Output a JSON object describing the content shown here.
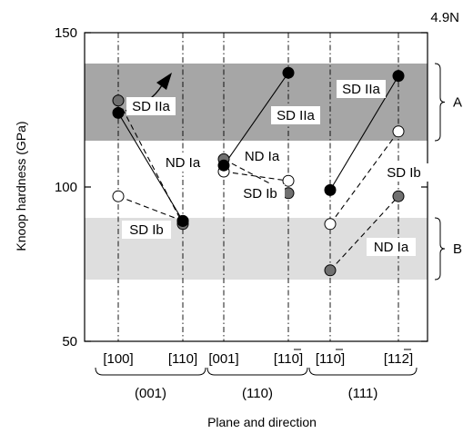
{
  "chart_data": {
    "type": "scatter",
    "corner_label": "4.9N",
    "ylabel": "Knoop hardness (GPa)",
    "xlabel": "Plane and direction",
    "ylim": [
      50,
      150
    ],
    "yticks": [
      "50",
      "100",
      "150"
    ],
    "ytick_values": [
      50,
      100,
      150
    ],
    "directions": [
      {
        "label": "[100]",
        "overbar": ""
      },
      {
        "label": "[110]",
        "overbar": ""
      },
      {
        "label": "[001]",
        "overbar": ""
      },
      {
        "label": "[110]",
        "overbar": "1"
      },
      {
        "label": "[110]",
        "overbar": "1"
      },
      {
        "label": "[112]",
        "overbar": "2"
      }
    ],
    "planes": [
      "(001)",
      "(110)",
      "(111)"
    ],
    "bands": [
      {
        "label": "A",
        "range": [
          115,
          140
        ],
        "color": "#a6a6a6"
      },
      {
        "label": "B",
        "range": [
          70,
          90
        ],
        "color": "#dedede"
      }
    ],
    "series": [
      {
        "name": "SD IIa",
        "marker": "black",
        "line": "solid",
        "groups": [
          [
            [
              0,
              124
            ],
            [
              1,
              89
            ]
          ],
          [
            [
              2,
              107
            ],
            [
              3,
              137
            ]
          ],
          [
            [
              4,
              99
            ],
            [
              5,
              136
            ]
          ]
        ]
      },
      {
        "name": "SD Ib",
        "marker": "white",
        "line": "dashed",
        "groups": [
          [
            [
              0,
              97
            ],
            [
              1,
              89
            ]
          ],
          [
            [
              2,
              105
            ],
            [
              3,
              102
            ]
          ],
          [
            [
              4,
              88
            ],
            [
              5,
              118
            ]
          ]
        ]
      },
      {
        "name": "ND Ia",
        "marker": "gray",
        "line": "dashed",
        "groups": [
          [
            [
              0,
              128
            ],
            [
              1,
              88
            ]
          ],
          [
            [
              2,
              109
            ],
            [
              3,
              98
            ]
          ],
          [
            [
              4,
              73
            ],
            [
              5,
              97
            ]
          ]
        ]
      }
    ],
    "annotations": [
      {
        "text": "SD IIa",
        "target": "SD IIa (001)"
      },
      {
        "text": "SD IIa",
        "target": "SD IIa (110)"
      },
      {
        "text": "SD IIa",
        "target": "SD IIa (111)"
      },
      {
        "text": "ND Ia",
        "target": "ND Ia (001)"
      },
      {
        "text": "ND Ia",
        "target": "ND Ia (110)"
      },
      {
        "text": "ND Ia",
        "target": "ND Ia (111)"
      },
      {
        "text": "SD Ib",
        "target": "SD Ib (001)"
      },
      {
        "text": "SD Ib",
        "target": "SD Ib (110)"
      },
      {
        "text": "SD Ib",
        "target": "SD Ib (111)"
      }
    ],
    "colors": {
      "black": "#000000",
      "white": "#ffffff",
      "gray": "#707070"
    }
  }
}
